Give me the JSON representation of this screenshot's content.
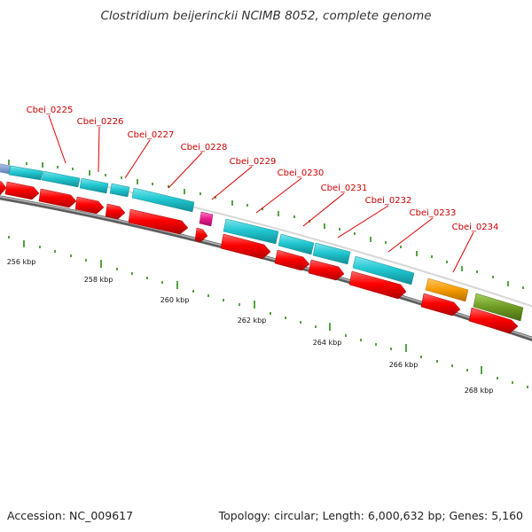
{
  "title": "Clostridium beijerinckii NCIMB 8052, complete genome",
  "footer": {
    "accession": "Accession: NC_009617",
    "topology": "Topology: circular; Length: 6,000,632 bp; Genes: 5,160"
  },
  "colors": {
    "backbone": "#7a7a7a",
    "orf_forward": "#ff0000",
    "gene_cyan": "#22c8d2",
    "rna_magenta": "#e8198c",
    "gene_orange": "#f59a00",
    "gene_olive": "#6e9b22",
    "gene_blue": "#6a8fc8",
    "tick": "#2a8a12",
    "label": "#cc0000"
  },
  "scale_labels": [
    "256 kbp",
    "258 kbp",
    "260 kbp",
    "262 kbp",
    "264 kbp",
    "266 kbp",
    "268 kbp"
  ],
  "gene_labels": [
    "Cbei_0225",
    "Cbei_0226",
    "Cbei_0227",
    "Cbei_0228",
    "Cbei_0229",
    "Cbei_0230",
    "Cbei_0231",
    "Cbei_0232",
    "Cbei_0233",
    "Cbei_0234"
  ]
}
